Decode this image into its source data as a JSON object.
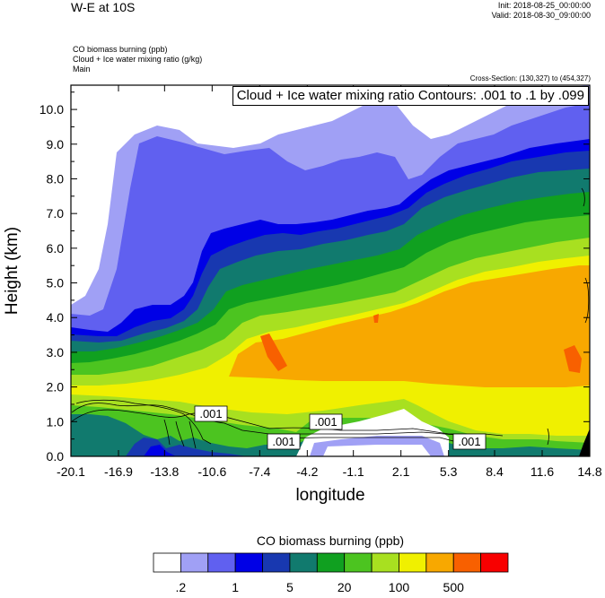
{
  "header": {
    "title": "W-E at 10S",
    "init": "Init: 2018-08-25_00:00:00",
    "valid": "Valid: 2018-08-30_09:00:00",
    "fields": [
      "CO biomass burning   (ppb)",
      "Cloud + Ice water mixing ratio   (g/kg)",
      "Main"
    ],
    "cross_section": "Cross-Section: (130,327) to (454,327)"
  },
  "chart_data": {
    "type": "heatmap",
    "title": "W-E at 10S",
    "xlabel": "longitude",
    "ylabel": "Height (km)",
    "x_ticks": [
      "-20.1",
      "-16.9",
      "-13.8",
      "-10.6",
      "-7.4",
      "-4.2",
      "-1.1",
      "2.1",
      "5.3",
      "8.4",
      "11.6",
      "14.8"
    ],
    "y_ticks": [
      "0.0",
      "1.0",
      "2.0",
      "3.0",
      "4.0",
      "5.0",
      "6.0",
      "7.0",
      "8.0",
      "9.0",
      "10.0"
    ],
    "xlim": [
      -20.1,
      14.8
    ],
    "ylim": [
      0,
      10.7
    ],
    "contour_label": "Cloud + Ice water mixing ratio Contours: .001 to .1 by .099",
    "contour_line_labels": [
      ".001",
      ".001",
      ".001",
      ".001"
    ],
    "colorbar": {
      "title": "CO biomass burning  (ppb)",
      "colors": [
        "#ffffff",
        "#a0a0f5",
        "#6060f0",
        "#0000e6",
        "#1838b0",
        "#117a6e",
        "#10a020",
        "#4cc420",
        "#a8e020",
        "#f0f000",
        "#f8a800",
        "#f86000",
        "#f80000"
      ],
      "tick_labels": [
        ".2",
        "1",
        "5",
        "20",
        "100",
        "500"
      ]
    }
  }
}
